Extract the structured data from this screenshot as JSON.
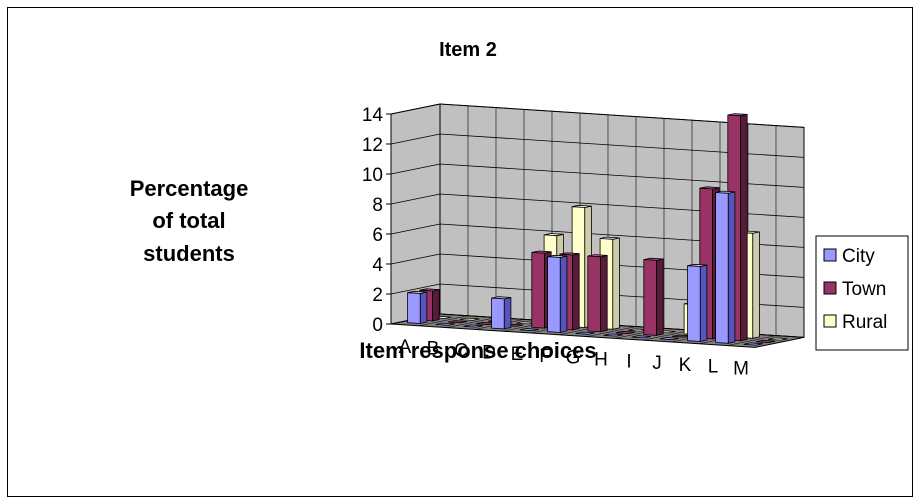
{
  "chart_data": {
    "type": "bar",
    "title": "Item 2",
    "ylabel_lines": [
      "Percentage",
      "of total",
      "students"
    ],
    "xlabel": "Item response choices",
    "categories": [
      "A",
      "B",
      "C",
      "D",
      "E",
      "F",
      "G",
      "H",
      "I",
      "J",
      "K",
      "L",
      "M"
    ],
    "series": [
      {
        "name": "City",
        "values": [
          2,
          0,
          0,
          2,
          0,
          5,
          0,
          0,
          0,
          0,
          5,
          10,
          0
        ]
      },
      {
        "name": "Town",
        "values": [
          2,
          0,
          0,
          0,
          5,
          5,
          5,
          0,
          5,
          0,
          10,
          15,
          0
        ]
      },
      {
        "name": "Rural",
        "values": [
          0,
          0,
          0,
          0,
          6,
          8,
          6,
          0,
          0,
          2,
          8,
          7,
          0
        ]
      }
    ],
    "yticks": [
      0,
      2,
      4,
      6,
      8,
      10,
      12,
      14
    ],
    "ylim": [
      0,
      14
    ],
    "grid": true,
    "legend_position": "right",
    "colors": {
      "City": {
        "front": "#9999ff",
        "side": "#5555bb",
        "top": "#ccccff"
      },
      "Town": {
        "front": "#993366",
        "side": "#5a1a3a",
        "top": "#c06090"
      },
      "Rural": {
        "front": "#ffffcc",
        "side": "#ccccaa",
        "top": "#ffffee"
      },
      "wall": "#c0c0c0",
      "floor": "#808080"
    }
  }
}
